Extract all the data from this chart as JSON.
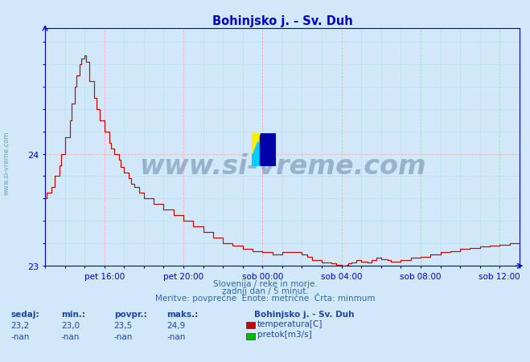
{
  "title": "Bohinjsko j. - Sv. Duh",
  "title_color": "#0000cc",
  "bg_color": "#d0e8f8",
  "plot_bg_color": "#d0e8f8",
  "line_color": "#cc0000",
  "ylabel_color": "#0000cc",
  "xlabel_color": "#0000aa",
  "grid_major_color": "#ffaaaa",
  "grid_minor_color": "#99bbee",
  "axis_color": "#0000cc",
  "ymin": 23.0,
  "ymax": 25.12,
  "yticks": [
    23,
    24
  ],
  "xtick_labels": [
    "pet 16:00",
    "pet 20:00",
    "sob 00:00",
    "sob 04:00",
    "sob 08:00",
    "sob 12:00"
  ],
  "footnote1": "Slovenija / reke in morje.",
  "footnote2": "zadnji dan / 5 minut.",
  "footnote3": "Meritve: povprečne  Enote: metrične  Črta: minmum",
  "legend_title": "Bohinjsko j. - Sv. Duh",
  "legend_items": [
    "temperatura[C]",
    "pretok[m3/s]"
  ],
  "legend_colors": [
    "#cc0000",
    "#00bb00"
  ],
  "stat_headers": [
    "sedaj:",
    "min.:",
    "povpr.:",
    "maks.:"
  ],
  "stat_row1": [
    "23,2",
    "23,0",
    "23,5",
    "24,9"
  ],
  "stat_row2": [
    "-nan",
    "-nan",
    "-nan",
    "-nan"
  ],
  "watermark": "www.si-vreme.com",
  "watermark_color": "#1a3a6b",
  "sidewatermark": "www.si-vreme.com",
  "temp_x": [
    0.0,
    0.08,
    0.08,
    0.17,
    0.17,
    0.25,
    0.25,
    0.33,
    0.33,
    0.42,
    0.42,
    0.5,
    0.5,
    0.58,
    0.58,
    0.67,
    0.67,
    0.75,
    0.75,
    0.83,
    0.83,
    0.92,
    0.92,
    1.0,
    1.0,
    1.17,
    1.17,
    1.33,
    1.33,
    1.5,
    1.5,
    1.67,
    1.67,
    1.75,
    1.75,
    1.83,
    1.83,
    1.92,
    1.92,
    2.0,
    2.0,
    2.17,
    2.17,
    2.25,
    2.25,
    2.33,
    2.33,
    2.5,
    2.5,
    2.67,
    2.67,
    2.83,
    2.83,
    3.0,
    3.0,
    3.08,
    3.08,
    3.17,
    3.17,
    3.25,
    3.25,
    3.33,
    3.33,
    3.42,
    3.42,
    3.5,
    3.5,
    3.67,
    3.67,
    3.83,
    3.83,
    4.0,
    4.0,
    4.17,
    4.17,
    4.33,
    4.33,
    4.5,
    4.5,
    4.67,
    4.67,
    5.0,
    5.0,
    5.33,
    5.33,
    5.5,
    5.5,
    5.67,
    5.67,
    6.0,
    6.0,
    6.33,
    6.33,
    6.67,
    6.67,
    7.0,
    7.0,
    7.33,
    7.33,
    7.67,
    7.67,
    8.0,
    8.0,
    8.33,
    8.33,
    8.67,
    8.67,
    9.0,
    9.0,
    9.33,
    9.33,
    9.67,
    9.67,
    10.0,
    10.0,
    10.5,
    10.5,
    11.0,
    11.0,
    11.5,
    11.5,
    12.0,
    12.0,
    12.5,
    12.5,
    13.0,
    13.0,
    13.5,
    13.5,
    14.0,
    14.0,
    14.5,
    14.5,
    15.0,
    15.0,
    15.33,
    15.33,
    15.5,
    15.5,
    15.67,
    15.67,
    16.0,
    16.0,
    16.5,
    16.5,
    17.0,
    17.0,
    17.5,
    17.5,
    18.0,
    18.0,
    18.5,
    18.5,
    19.0,
    19.0,
    19.5,
    19.5,
    20.0,
    20.0,
    20.5,
    20.5,
    21.0,
    21.0,
    21.5,
    21.5,
    22.0,
    22.0,
    22.5,
    22.5,
    23.0,
    23.0,
    23.5,
    23.5,
    24.0
  ],
  "temp_y": [
    23.6,
    23.6,
    23.65,
    23.65,
    23.7,
    23.7,
    23.75,
    23.75,
    23.9,
    23.9,
    24.0,
    24.0,
    24.1,
    24.1,
    24.2,
    24.2,
    24.3,
    24.3,
    24.4,
    24.4,
    24.5,
    24.5,
    24.55,
    24.55,
    24.6,
    24.6,
    24.7,
    24.7,
    24.75,
    24.75,
    24.8,
    24.8,
    24.85,
    24.85,
    24.88,
    24.88,
    24.9,
    24.9,
    24.88,
    24.88,
    24.85,
    24.85,
    24.8,
    24.8,
    24.75,
    24.75,
    24.65,
    24.65,
    24.55,
    24.55,
    24.45,
    24.45,
    24.35,
    24.35,
    24.25,
    24.25,
    24.2,
    24.2,
    24.15,
    24.15,
    24.1,
    24.1,
    24.05,
    24.05,
    24.0,
    24.0,
    23.95,
    23.95,
    23.9,
    23.9,
    23.85,
    23.85,
    23.8,
    23.8,
    23.75,
    23.75,
    23.7,
    23.7,
    23.65,
    23.65,
    23.6,
    23.6,
    23.55,
    23.55,
    23.5,
    23.5,
    23.45,
    23.45,
    23.4,
    23.4,
    23.35,
    23.35,
    23.3,
    23.3,
    23.25,
    23.25,
    23.2,
    23.2,
    23.18,
    23.18,
    23.15,
    23.15,
    23.13,
    23.13,
    23.1,
    23.1,
    23.08,
    23.08,
    23.06,
    23.06,
    23.05,
    23.05,
    23.04,
    23.04,
    23.12,
    23.12,
    23.14,
    23.14,
    23.12,
    23.12,
    23.1,
    23.1,
    23.08,
    23.08,
    23.06,
    23.06,
    23.05,
    23.05,
    23.04,
    23.04,
    23.03,
    23.03,
    23.02,
    23.02,
    23.01,
    23.01,
    23.0,
    23.0,
    23.01,
    23.01,
    23.02,
    23.02,
    23.03,
    23.03,
    23.05,
    23.05,
    23.06,
    23.06,
    23.07,
    23.07,
    23.06,
    23.06,
    23.05,
    23.05,
    23.04,
    23.04,
    23.05,
    23.05,
    23.07,
    23.07,
    23.08,
    23.08,
    23.1,
    23.1,
    23.12,
    23.12,
    23.14,
    23.14,
    23.15,
    23.15,
    23.17,
    23.17,
    23.2,
    23.2
  ]
}
